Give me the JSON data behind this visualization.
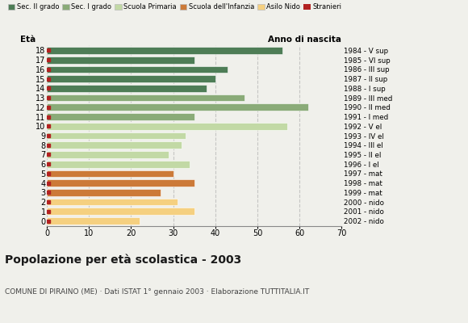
{
  "ages": [
    18,
    17,
    16,
    15,
    14,
    13,
    12,
    11,
    10,
    9,
    8,
    7,
    6,
    5,
    4,
    3,
    2,
    1,
    0
  ],
  "values": [
    56,
    35,
    43,
    40,
    38,
    47,
    62,
    35,
    57,
    33,
    32,
    29,
    34,
    30,
    35,
    27,
    31,
    35,
    22
  ],
  "right_labels": [
    "1984 - V sup",
    "1985 - VI sup",
    "1986 - III sup",
    "1987 - II sup",
    "1988 - I sup",
    "1989 - III med",
    "1990 - II med",
    "1991 - I med",
    "1992 - V el",
    "1993 - IV el",
    "1994 - III el",
    "1995 - II el",
    "1996 - I el",
    "1997 - mat",
    "1998 - mat",
    "1999 - mat",
    "2000 - nido",
    "2001 - nido",
    "2002 - nido"
  ],
  "bar_colors": {
    "sec2": "#4e7d56",
    "sec1": "#8aab78",
    "primaria": "#c2d9a5",
    "infanzia": "#cc7a38",
    "nido": "#f5d080"
  },
  "stranieri_color": "#b22222",
  "age_groups": {
    "sec2": [
      14,
      15,
      16,
      17,
      18
    ],
    "sec1": [
      11,
      12,
      13
    ],
    "primaria": [
      6,
      7,
      8,
      9,
      10
    ],
    "infanzia": [
      3,
      4,
      5
    ],
    "nido": [
      0,
      1,
      2
    ]
  },
  "legend_labels": [
    "Sec. II grado",
    "Sec. I grado",
    "Scuola Primaria",
    "Scuola dell'Infanzia",
    "Asilo Nido",
    "Stranieri"
  ],
  "legend_colors": [
    "#4e7d56",
    "#8aab78",
    "#c2d9a5",
    "#cc7a38",
    "#f5d080",
    "#b22222"
  ],
  "title": "Popolazione per età scolastica - 2003",
  "subtitle": "COMUNE DI PIRAINO (ME) · Dati ISTAT 1° gennaio 2003 · Elaborazione TUTTITALIA.IT",
  "eta_label": "Età",
  "anno_label": "Anno di nascita",
  "xlim": [
    0,
    70
  ],
  "xticks": [
    0,
    10,
    20,
    30,
    40,
    50,
    60,
    70
  ],
  "background_color": "#f0f0eb",
  "bar_height": 0.75
}
